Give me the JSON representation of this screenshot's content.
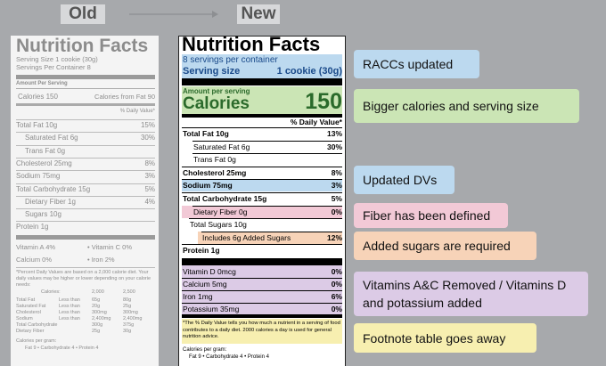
{
  "header": {
    "old": "Old",
    "new": "New"
  },
  "old_label": {
    "title": "Nutrition Facts",
    "serving_lines": [
      "Serving Size 1 cookie (30g)",
      "Servings Per Container 8"
    ],
    "amount_per_serving": "Amount Per Serving",
    "calories": "Calories 150",
    "calories_from_fat": "Calories from Fat 90",
    "dv_header": "% Daily Value*",
    "rows": [
      [
        "Total Fat 10g",
        "15%"
      ],
      [
        "Saturated Fat 6g",
        "30%"
      ],
      [
        "Trans Fat 0g"
      ],
      [
        "Cholesterol 25mg",
        "8%"
      ],
      [
        "Sodium 75mg",
        "3%"
      ],
      [
        "Total Carbohydrate 15g",
        "5%"
      ],
      [
        "Dietary Fiber 1g",
        "4%"
      ],
      [
        "Sugars 10g"
      ],
      [
        "Protein 1g"
      ]
    ],
    "vitamins": [
      [
        "Vitamin A 4%",
        "• Vitamin C 0%"
      ],
      [
        "Calcium 0%",
        "• Iron 2%"
      ]
    ],
    "footnote": "*Percent Daily Values are based on a 2,000 calorie diet. Your daily values may be higher or lower depending on your calorie needs:",
    "table_header": [
      "Calories:",
      "2,000",
      "2,500"
    ],
    "table": [
      [
        "Total Fat",
        "Less than",
        "65g",
        "80g"
      ],
      [
        "Saturated Fat",
        "Less than",
        "20g",
        "25g"
      ],
      [
        "Cholesterol",
        "Less than",
        "300mg",
        "300mg"
      ],
      [
        "Sodium",
        "Less than",
        "2,400mg",
        "2,400mg"
      ],
      [
        "Total Carbohydrate",
        "300g",
        "375g"
      ],
      [
        "Dietary Fiber",
        "25g",
        "30g"
      ]
    ],
    "calories_per_gram": "Calories per gram:",
    "calories_per_gram_values": "Fat 9 • Carbohydrate 4 • Protein 4"
  },
  "new_label": {
    "title": "Nutrition Facts",
    "servings": "8 servings per container",
    "serving_size": [
      "Serving size",
      "1 cookie (30g)"
    ],
    "amount_per_serving": "Amount per serving",
    "calories": [
      "Calories",
      "150"
    ],
    "dv_header": "% Daily Value*",
    "rows": [
      [
        "Total Fat 10g",
        "13%"
      ],
      [
        "Saturated Fat 6g",
        "30%"
      ],
      [
        "Trans Fat 0g"
      ],
      [
        "Cholesterol 25mg",
        "8%"
      ],
      [
        "Sodium 75mg",
        "3%"
      ],
      [
        "Total Carbohydrate 15g",
        "5%"
      ],
      [
        "Dietary Fiber 0g",
        "0%"
      ],
      [
        "Total Sugars 10g"
      ],
      [
        "Includes 6g Added Sugars",
        "12%"
      ],
      [
        "Protein 1g"
      ]
    ],
    "vitamins": [
      [
        "Vitamin D 0mcg",
        "0%"
      ],
      [
        "Calcium 5mg",
        "0%"
      ],
      [
        "Iron 1mg",
        "6%"
      ],
      [
        "Potassium 35mg",
        "0%"
      ]
    ],
    "footnote": "*The % Daily Value tells you how much a nutrient in a serving of food contributes to a daily diet. 2000 calories a day is used for general nutrition advice.",
    "calories_per_gram": "Calories per gram:",
    "calories_per_gram_values": "Fat 9 • Carbohydrate 4 • Protein 4"
  },
  "callouts": [
    "RACCs updated",
    "Bigger calories and serving size",
    "Updated DVs",
    "Fiber has been defined",
    "Added sugars are required",
    "Vitamins A&C Removed / Vitamins D and potassium added",
    "Footnote table goes away"
  ]
}
